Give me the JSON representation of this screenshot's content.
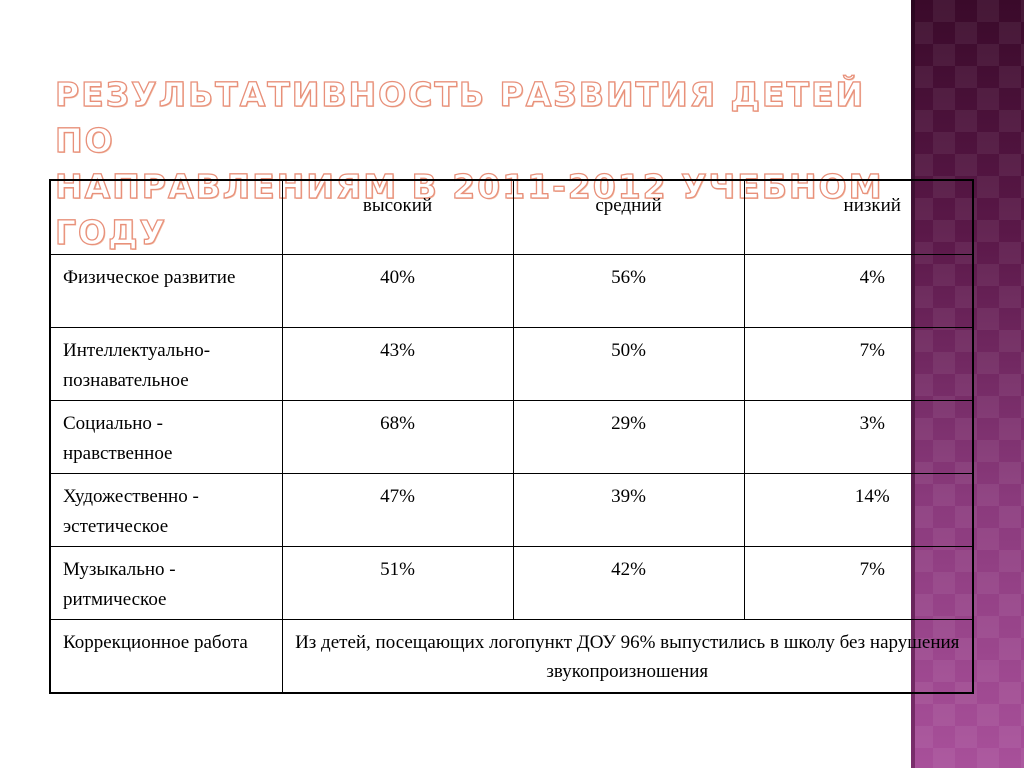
{
  "slide": {
    "title": "Результативность развития детей по\nнаправлениям в 2011-2012 учебном году"
  },
  "table": {
    "header": {
      "corner": "",
      "high": "высокий",
      "medium": "средний",
      "low": "низкий"
    },
    "rows": [
      {
        "label": "Физическое развитие",
        "high": "40%",
        "medium": "56%",
        "low": "4%"
      },
      {
        "label": "Интеллектуально-познавательное",
        "high": "43%",
        "medium": "50%",
        "low": "7%"
      },
      {
        "label": "Социально - нравственное",
        "high": "68%",
        "medium": "29%",
        "low": "3%"
      },
      {
        "label": "Художественно - эстетическое",
        "high": "47%",
        "medium": "39%",
        "low": "14%"
      },
      {
        "label": "Музыкально - ритмическое",
        "high": "51%",
        "medium": "42%",
        "low": "7%"
      }
    ],
    "correction": {
      "label": "Коррекционное работа",
      "text": "Из детей, посещающих логопункт ДОУ 96% выпустились в школу без нарушения звукопроизношения"
    }
  },
  "colors": {
    "title_fill": "#ffffff",
    "title_outline": "#e8907a",
    "side_band_top": "#3a0a2a",
    "side_band_bottom": "#a8509a"
  }
}
